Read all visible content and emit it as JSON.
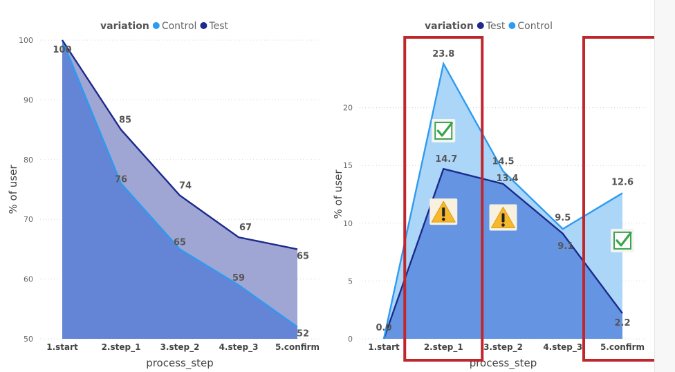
{
  "colors": {
    "control": "#2d9bf0",
    "test": "#1b2a8c",
    "highlight": "#c0272d",
    "check": "#3aa34a",
    "warning": "#f5b82e"
  },
  "chart_data": [
    {
      "type": "area",
      "legend": {
        "title": "variation",
        "entries": [
          "Control",
          "Test"
        ]
      },
      "xlabel": "process_step",
      "ylabel": "% of user",
      "categories": [
        "1.start",
        "2.step_1",
        "3.step_2",
        "4.step_3",
        "5.confirm"
      ],
      "ylim": [
        50,
        100
      ],
      "yticks": [
        50,
        60,
        70,
        80,
        90,
        100
      ],
      "grid": true,
      "series": [
        {
          "name": "Control",
          "values": [
            100,
            76,
            65,
            59,
            52
          ],
          "labels": [
            "",
            "76",
            "65",
            "59",
            "52"
          ]
        },
        {
          "name": "Test",
          "values": [
            100,
            85,
            74,
            67,
            65
          ],
          "labels": [
            "100",
            "85",
            "74",
            "67",
            "65"
          ]
        }
      ]
    },
    {
      "type": "area",
      "legend": {
        "title": "variation",
        "entries": [
          "Test",
          "Control"
        ]
      },
      "xlabel": "process_step",
      "ylabel": "% of user",
      "categories": [
        "1.start",
        "2.step_1",
        "3.step_2",
        "4.step_3",
        "5.confirm"
      ],
      "ylim": [
        0,
        25
      ],
      "yticks": [
        0,
        5,
        10,
        15,
        20
      ],
      "grid": true,
      "series": [
        {
          "name": "Test",
          "values": [
            0,
            14.7,
            13.4,
            9.1,
            2.2
          ],
          "labels": [
            "",
            "14.7",
            "13.4",
            "9.1",
            "2.2"
          ]
        },
        {
          "name": "Control",
          "values": [
            0,
            23.8,
            14.5,
            9.5,
            12.6
          ],
          "labels": [
            "0.0",
            "23.8",
            "14.5",
            "9.5",
            "12.6"
          ]
        }
      ],
      "annotations": [
        {
          "category": "2.step_1",
          "type": "highlight-box"
        },
        {
          "category": "5.confirm",
          "type": "highlight-box"
        },
        {
          "category": "2.step_1",
          "type": "check-icon",
          "y": 18
        },
        {
          "category": "2.step_1",
          "type": "warning-icon",
          "y": 11
        },
        {
          "category": "3.step_2",
          "type": "warning-icon",
          "y": 10.5
        },
        {
          "category": "5.confirm",
          "type": "check-icon",
          "y": 8.5
        }
      ]
    }
  ]
}
